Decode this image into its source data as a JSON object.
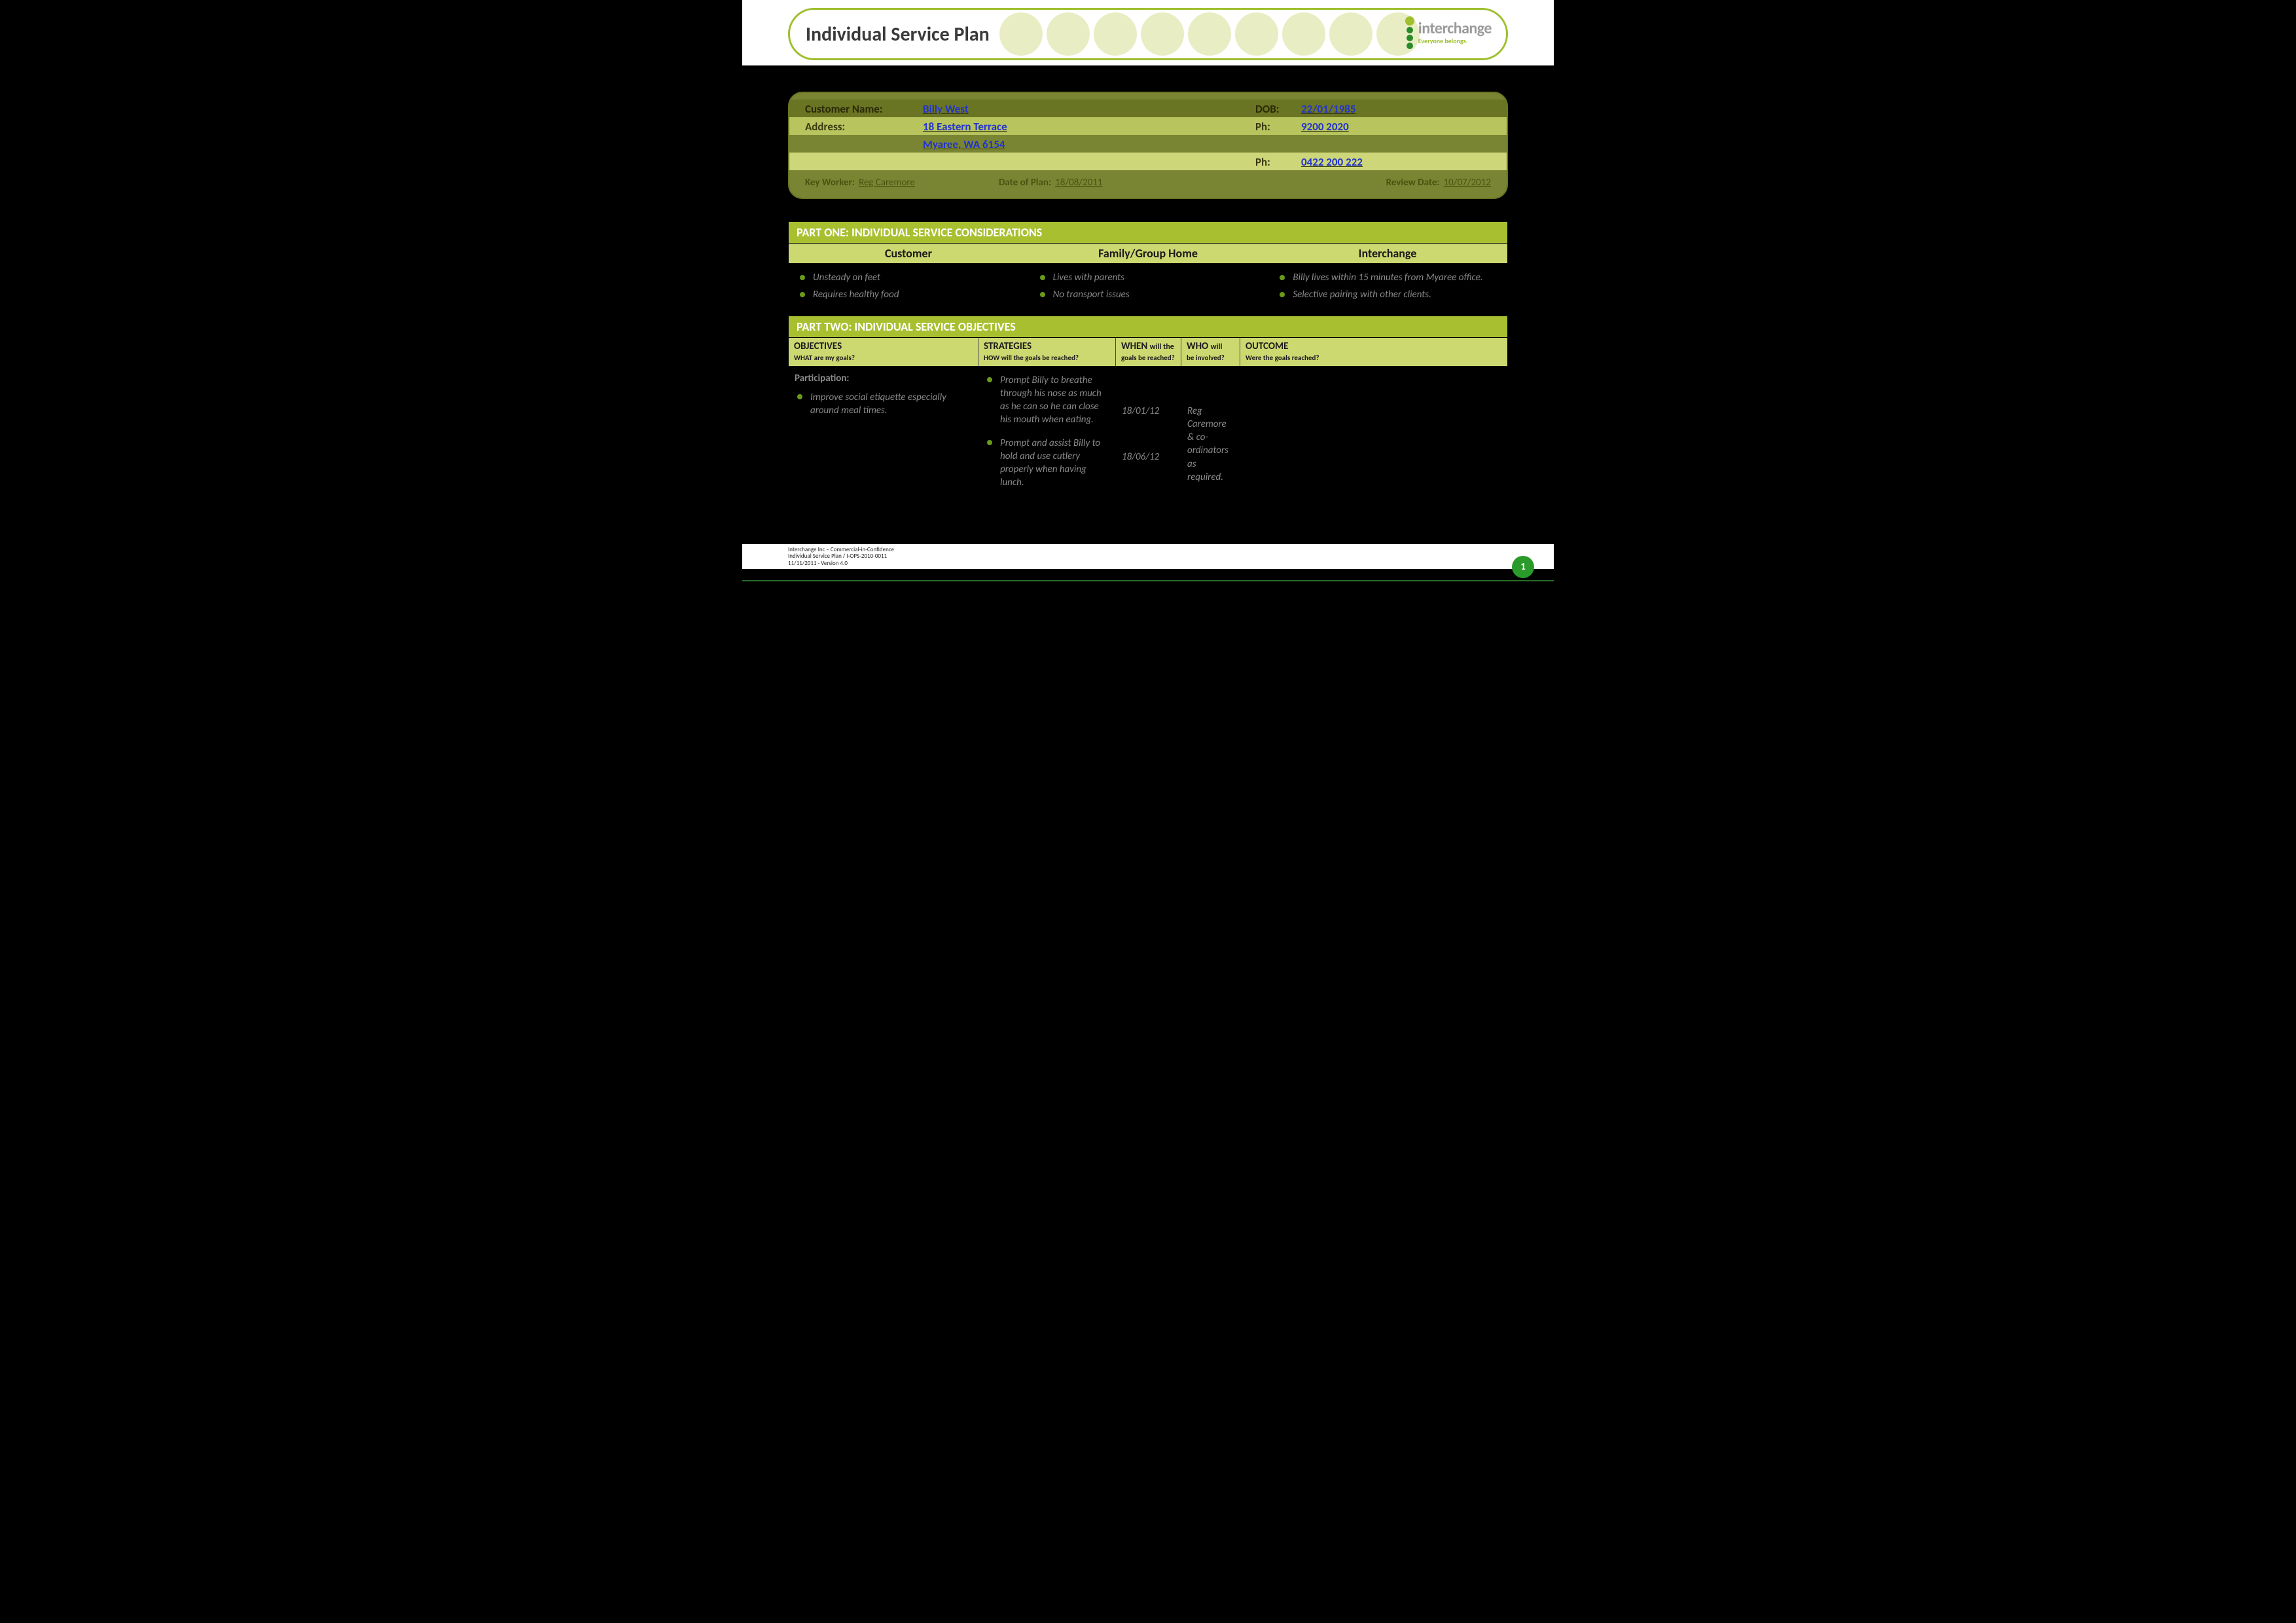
{
  "header": {
    "title": "Individual Service Plan",
    "brand": "interchange",
    "tagline": "Everyone belongs."
  },
  "info": {
    "customer_name_label": "Customer Name:",
    "customer_name": "Billy West",
    "dob_label": "DOB:",
    "dob": "22/01/1985",
    "address_label": "Address:",
    "address_line1": "18 Eastern Terrace",
    "address_line2": "Myaree,   WA 6154",
    "ph_label": "Ph:",
    "phone1": "9200 2020",
    "phone2": "0422 200 222",
    "key_worker_label": "Key Worker:",
    "key_worker": "Reg Caremore",
    "date_of_plan_label": "Date of Plan:",
    "date_of_plan": "18/08/2011",
    "review_date_label": "Review Date:",
    "review_date": "10/07/2012"
  },
  "part_one": {
    "heading": "PART ONE:   INDIVIDUAL SERVICE CONSIDERATIONS",
    "col1_title": "Customer",
    "col2_title": "Family/Group Home",
    "col3_title": "Interchange",
    "col1_items": [
      "Unsteady on feet",
      "Requires healthy food"
    ],
    "col2_items": [
      "Lives with parents",
      "No transport issues"
    ],
    "col3_items": [
      "Billy lives within 15 minutes from Myaree office.",
      "Selective pairing with other clients."
    ]
  },
  "part_two": {
    "heading": "PART TWO:   INDIVIDUAL SERVICE OBJECTIVES",
    "headers": {
      "objectives": "OBJECTIVES",
      "objectives_sub": "WHAT are my goals?",
      "strategies": "STRATEGIES",
      "strategies_sub": "HOW will the goals be reached?",
      "when_a": "WHEN",
      "when_b": "will the",
      "when_sub": "goals be reached?",
      "who_a": "WHO",
      "who_b": "will",
      "who_sub": "be involved?",
      "outcome": "OUTCOME",
      "outcome_sub": "Were the goals reached?"
    },
    "row": {
      "obj_subhead": "Participation:",
      "obj_item": "Improve social etiquette especially around meal times.",
      "strat_item1": "Prompt Billy to breathe through his nose as much as he can so he can close his mouth when eating.",
      "strat_item2": "Prompt and assist Billy to hold and use cutlery properly when having lunch.",
      "when1": "18/01/12",
      "when2": "18/06/12",
      "who": "Reg Caremore & co-ordinators as required."
    }
  },
  "footer": {
    "line1": "Interchange Inc – Commercial-in-Confidence",
    "line2": "Individual Service Plan / I-OPS-2010-0011",
    "line3": "11/11/2011     -     Version 4.0",
    "page": "1"
  },
  "colors": {
    "accent_green": "#a8c030",
    "light_green": "#ccd870",
    "olive": "#7a8533",
    "link_blue": "#2233cc",
    "bullet_green": "#6a9a1a",
    "badge_green": "#2a9a2a"
  }
}
